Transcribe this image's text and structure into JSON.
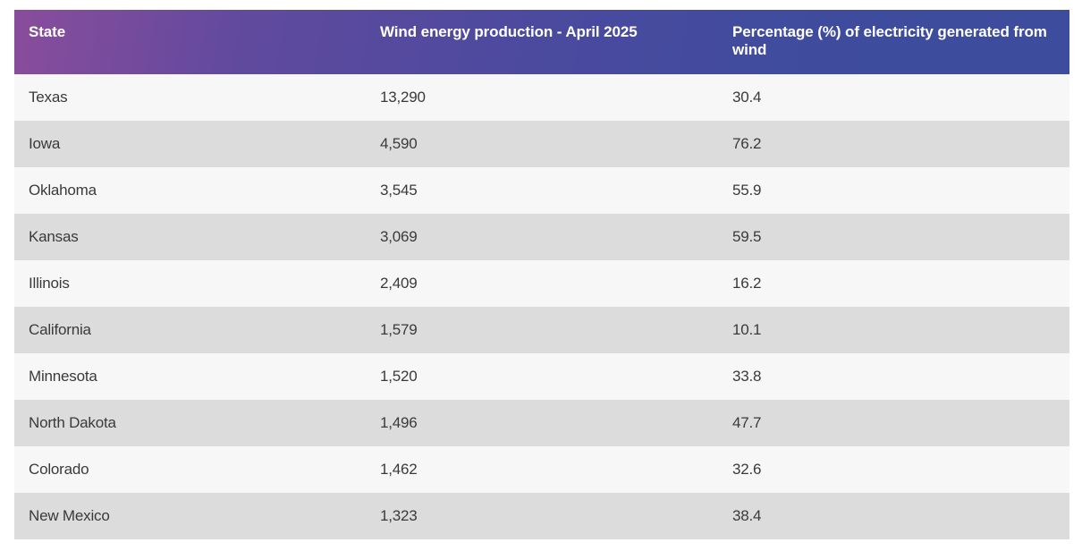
{
  "table": {
    "headers": [
      "State",
      "Wind energy production - April 2025",
      "Percentage (%) of electricity generated from wind"
    ],
    "rows": [
      [
        "Texas",
        "13,290",
        "30.4"
      ],
      [
        "Iowa",
        "4,590",
        "76.2"
      ],
      [
        "Oklahoma",
        "3,545",
        "55.9"
      ],
      [
        "Kansas",
        "3,069",
        "59.5"
      ],
      [
        "Illinois",
        "2,409",
        "16.2"
      ],
      [
        "California",
        "1,579",
        "10.1"
      ],
      [
        "Minnesota",
        "1,520",
        "33.8"
      ],
      [
        "North Dakota",
        "1,496",
        "47.7"
      ],
      [
        "Colorado",
        "1,462",
        "32.6"
      ],
      [
        "New Mexico",
        "1,323",
        "38.4"
      ]
    ]
  },
  "colors": {
    "header_gradient_start": "#8a4c9c",
    "header_gradient_end": "#3d4c9d",
    "row_light": "#f7f7f7",
    "row_dark": "#dcdcdc",
    "text": "#3a3a3a"
  }
}
